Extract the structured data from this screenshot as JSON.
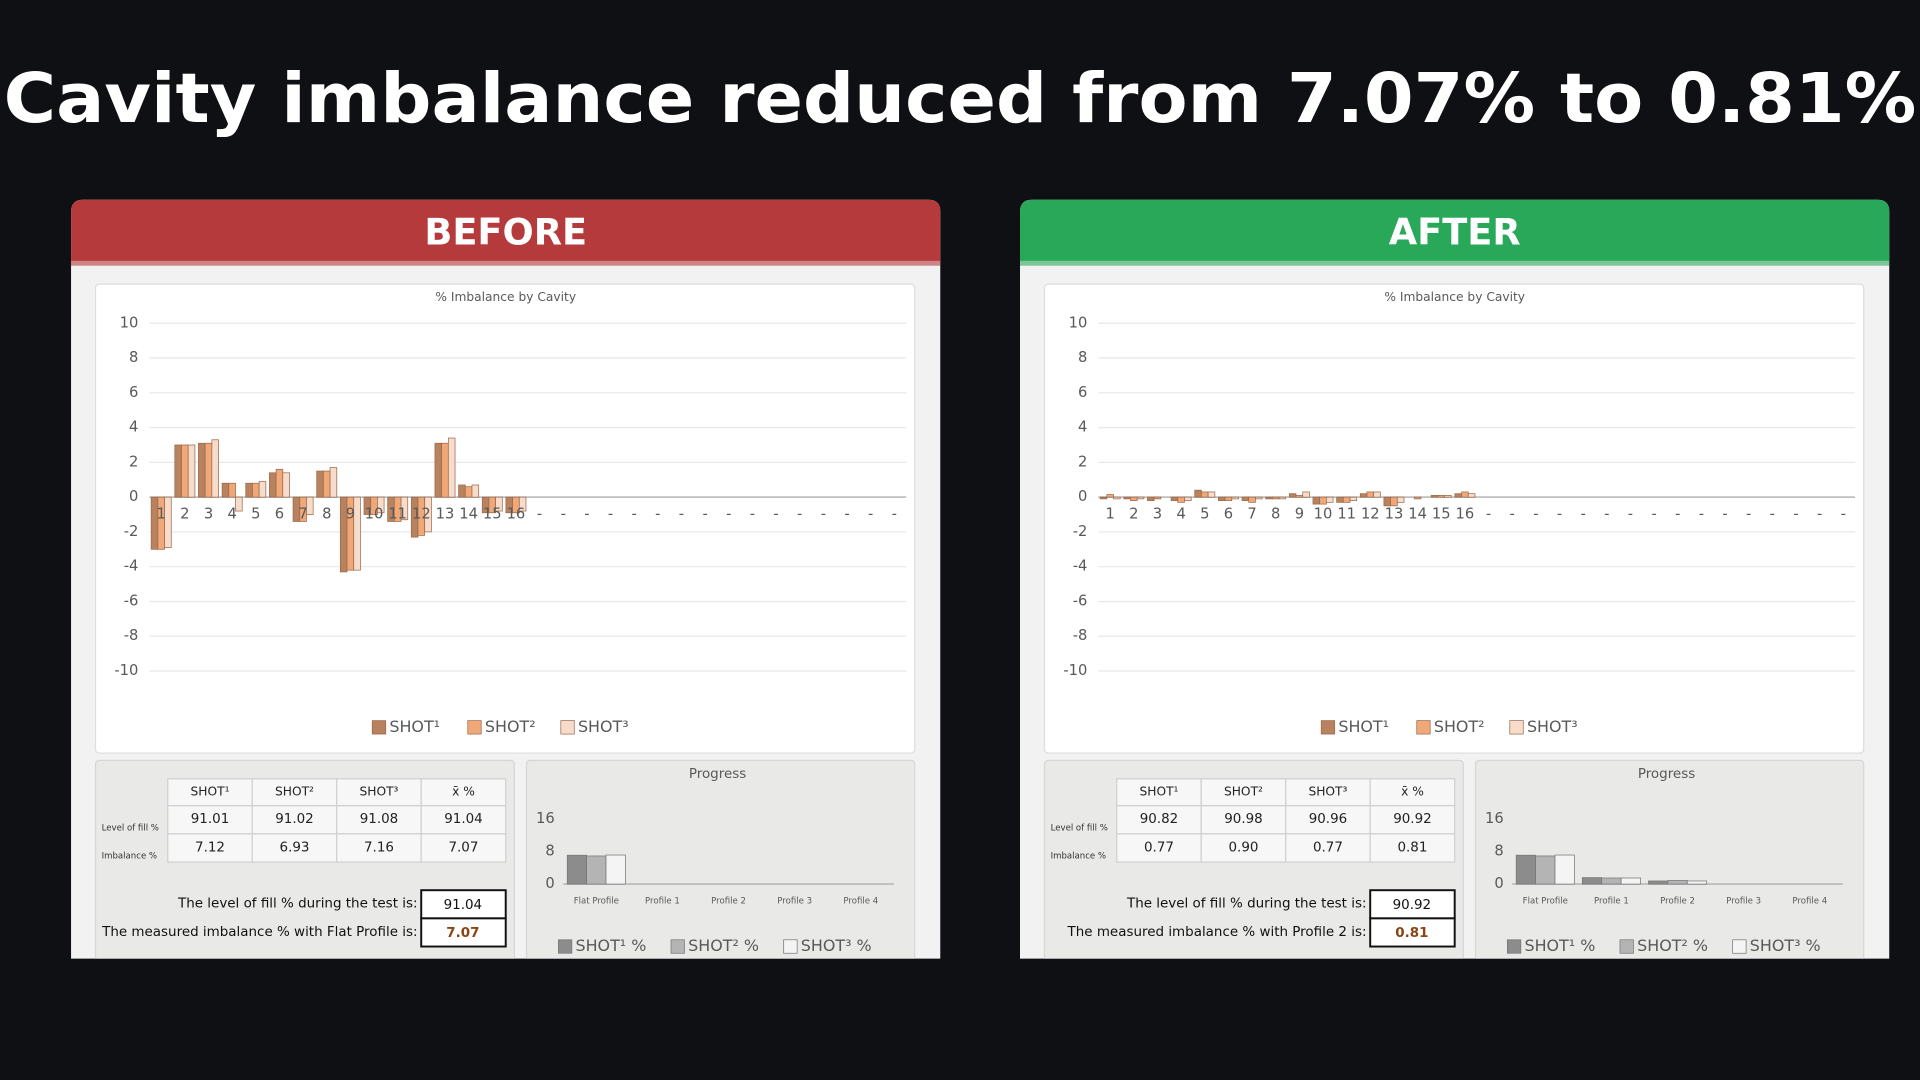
{
  "title": "Cavity imbalance reduced from 7.07% to 0.81%",
  "panels": [
    {
      "label": "BEFORE",
      "color": "#b53a3c",
      "table": {
        "header": [
          "SHOT¹",
          "SHOT²",
          "SHOT³",
          "x̄ %"
        ],
        "rows": [
          {
            "label": "Level of fill %",
            "values": [
              "91.01",
              "91.02",
              "91.08",
              "91.04"
            ]
          },
          {
            "label": "Imbalance %",
            "values": [
              "7.12",
              "6.93",
              "7.16",
              "7.07"
            ]
          }
        ]
      },
      "summary": [
        {
          "text": "The level of fill % during the test is:",
          "value": "91.04"
        },
        {
          "text": "The measured imbalance % with Flat Profile is:",
          "value": "7.07"
        }
      ]
    },
    {
      "label": "AFTER",
      "color": "#2aa85a",
      "table": {
        "header": [
          "SHOT¹",
          "SHOT²",
          "SHOT³",
          "x̄ %"
        ],
        "rows": [
          {
            "label": "Level of fill %",
            "values": [
              "90.82",
              "90.98",
              "90.96",
              "90.92"
            ]
          },
          {
            "label": "Imbalance %",
            "values": [
              "0.77",
              "0.90",
              "0.77",
              "0.81"
            ]
          }
        ]
      },
      "summary": [
        {
          "text": "The level of fill % during the test is:",
          "value": "90.92"
        },
        {
          "text": "The measured imbalance % with Profile 2 is:",
          "value": "0.81"
        }
      ]
    }
  ],
  "chart_data": [
    {
      "type": "bar",
      "title": "% Imbalance by Cavity",
      "categories": [
        "1",
        "2",
        "3",
        "4",
        "5",
        "6",
        "7",
        "8",
        "9",
        "10",
        "11",
        "12",
        "13",
        "14",
        "15",
        "16",
        "-",
        "-",
        "-",
        "-",
        "-",
        "-",
        "-",
        "-",
        "-",
        "-",
        "-",
        "-",
        "-",
        "-",
        "-",
        "-"
      ],
      "series": [
        {
          "name": "SHOT¹",
          "color": "#b9825f",
          "values": [
            -3.0,
            3.0,
            3.1,
            0.8,
            0.8,
            1.4,
            -1.4,
            1.5,
            -4.3,
            -1.0,
            -1.4,
            -2.3,
            3.1,
            0.7,
            -0.9,
            -0.9,
            null,
            null,
            null,
            null,
            null,
            null,
            null,
            null,
            null,
            null,
            null,
            null,
            null,
            null,
            null,
            null
          ]
        },
        {
          "name": "SHOT²",
          "color": "#f0a878",
          "values": [
            -3.0,
            3.0,
            3.1,
            0.8,
            0.8,
            1.6,
            -1.4,
            1.5,
            -4.2,
            -1.0,
            -1.4,
            -2.2,
            3.1,
            0.6,
            -0.9,
            -0.9,
            null,
            null,
            null,
            null,
            null,
            null,
            null,
            null,
            null,
            null,
            null,
            null,
            null,
            null,
            null,
            null
          ]
        },
        {
          "name": "SHOT³",
          "color": "#f8dccb",
          "values": [
            -2.9,
            3.0,
            3.3,
            -0.8,
            0.9,
            1.4,
            -1.0,
            1.7,
            -4.2,
            -0.9,
            -1.3,
            -2.0,
            3.4,
            0.7,
            -0.8,
            -0.8,
            null,
            null,
            null,
            null,
            null,
            null,
            null,
            null,
            null,
            null,
            null,
            null,
            null,
            null,
            null,
            null
          ]
        }
      ],
      "ylim": [
        -10,
        10
      ],
      "yticks": [
        -10,
        -8,
        -6,
        -4,
        -2,
        0,
        2,
        4,
        6,
        8,
        10
      ],
      "grid": true,
      "legend": "bottom"
    },
    {
      "type": "bar",
      "title": "Progress",
      "categories": [
        "Flat Profile",
        "Profile 1",
        "Profile 2",
        "Profile 3",
        "Profile 4"
      ],
      "series": [
        {
          "name": "SHOT¹ %",
          "color": "#8c8c8c",
          "values": [
            7.12,
            null,
            null,
            null,
            null
          ]
        },
        {
          "name": "SHOT² %",
          "color": "#b4b4b4",
          "values": [
            6.93,
            null,
            null,
            null,
            null
          ]
        },
        {
          "name": "SHOT³ %",
          "color": "#f4f4f4",
          "values": [
            7.16,
            null,
            null,
            null,
            null
          ]
        }
      ],
      "ylim": [
        0,
        16
      ],
      "yticks": [
        0,
        8,
        16
      ],
      "grid": false,
      "legend": "bottom"
    },
    {
      "type": "bar",
      "title": "% Imbalance by Cavity",
      "categories": [
        "1",
        "2",
        "3",
        "4",
        "5",
        "6",
        "7",
        "8",
        "9",
        "10",
        "11",
        "12",
        "13",
        "14",
        "15",
        "16",
        "-",
        "-",
        "-",
        "-",
        "-",
        "-",
        "-",
        "-",
        "-",
        "-",
        "-",
        "-",
        "-",
        "-",
        "-",
        "-"
      ],
      "series": [
        {
          "name": "SHOT¹",
          "color": "#b9825f",
          "values": [
            -0.1,
            -0.1,
            -0.2,
            -0.2,
            0.4,
            -0.2,
            -0.2,
            -0.1,
            0.2,
            -0.4,
            -0.3,
            0.2,
            -0.5,
            0.0,
            0.1,
            0.2,
            null,
            null,
            null,
            null,
            null,
            null,
            null,
            null,
            null,
            null,
            null,
            null,
            null,
            null,
            null,
            null
          ]
        },
        {
          "name": "SHOT²",
          "color": "#f0a878",
          "values": [
            0.15,
            -0.2,
            -0.1,
            -0.3,
            0.3,
            -0.2,
            -0.3,
            -0.1,
            0.1,
            -0.4,
            -0.3,
            0.3,
            -0.5,
            -0.1,
            0.1,
            0.3,
            null,
            null,
            null,
            null,
            null,
            null,
            null,
            null,
            null,
            null,
            null,
            null,
            null,
            null,
            null,
            null
          ]
        },
        {
          "name": "SHOT³",
          "color": "#f8dccb",
          "values": [
            -0.1,
            -0.1,
            0.0,
            -0.2,
            0.3,
            -0.1,
            -0.1,
            -0.1,
            0.3,
            -0.3,
            -0.2,
            0.3,
            -0.3,
            0.0,
            0.1,
            0.2,
            null,
            null,
            null,
            null,
            null,
            null,
            null,
            null,
            null,
            null,
            null,
            null,
            null,
            null,
            null,
            null
          ]
        }
      ],
      "ylim": [
        -10,
        10
      ],
      "yticks": [
        -10,
        -8,
        -6,
        -4,
        -2,
        0,
        2,
        4,
        6,
        8,
        10
      ],
      "grid": true,
      "legend": "bottom"
    },
    {
      "type": "bar",
      "title": "Progress",
      "categories": [
        "Flat Profile",
        "Profile 1",
        "Profile 2",
        "Profile 3",
        "Profile 4"
      ],
      "series": [
        {
          "name": "SHOT¹ %",
          "color": "#8c8c8c",
          "values": [
            7.12,
            1.6,
            0.77,
            null,
            null
          ]
        },
        {
          "name": "SHOT² %",
          "color": "#b4b4b4",
          "values": [
            6.93,
            1.5,
            0.9,
            null,
            null
          ]
        },
        {
          "name": "SHOT³ %",
          "color": "#f4f4f4",
          "values": [
            7.16,
            1.5,
            0.77,
            null,
            null
          ]
        }
      ],
      "ylim": [
        0,
        16
      ],
      "yticks": [
        0,
        8,
        16
      ],
      "grid": false,
      "legend": "bottom"
    }
  ]
}
